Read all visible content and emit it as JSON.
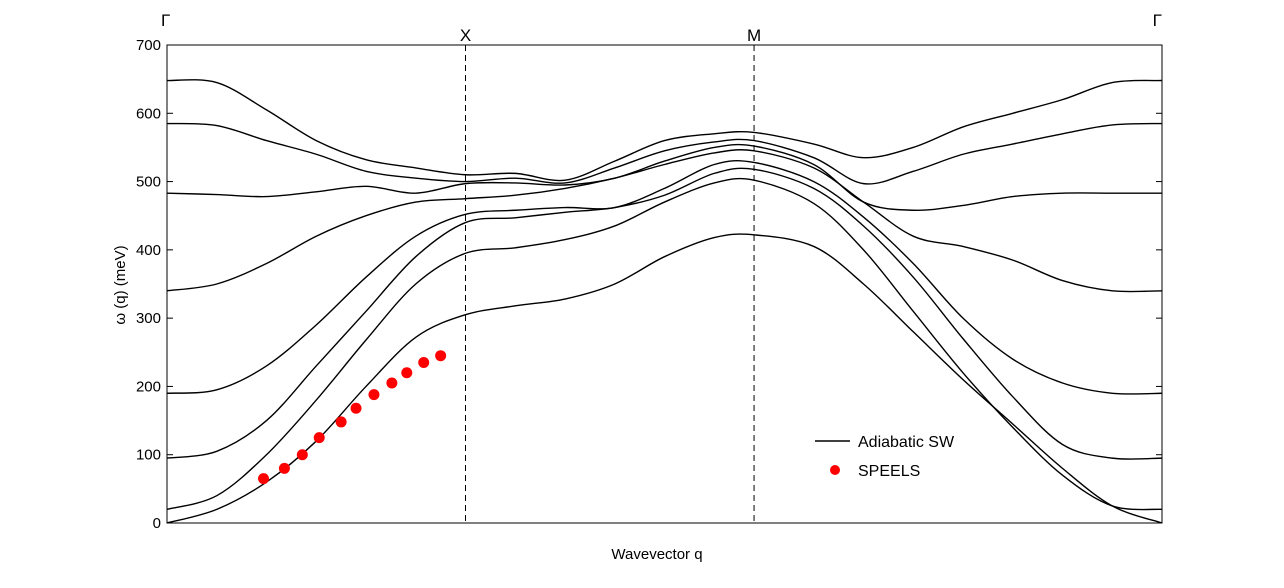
{
  "chart_data": {
    "type": "line",
    "title": "",
    "xlabel": "Wavevector q",
    "ylabel": "ω (q) (meV)",
    "ylim": [
      0,
      700
    ],
    "yticks": [
      0,
      100,
      200,
      300,
      400,
      500,
      600,
      700
    ],
    "xlim": [
      0,
      1
    ],
    "high_symmetry_points": [
      {
        "label": "Γ",
        "x": 0.0
      },
      {
        "label": "X",
        "x": 0.3
      },
      {
        "label": "M",
        "x": 0.59
      },
      {
        "label": "Γ",
        "x": 1.0
      }
    ],
    "grid": false,
    "legend": {
      "position": "lower-right",
      "entries": [
        "Adiabatic SW",
        "SPEELS"
      ]
    },
    "series": [
      {
        "name": "Adiabatic SW",
        "style": "line",
        "points": [
          [
            0,
            0
          ],
          [
            0.05,
            20
          ],
          [
            0.1,
            60
          ],
          [
            0.15,
            120
          ],
          [
            0.2,
            200
          ],
          [
            0.25,
            272
          ],
          [
            0.3,
            305
          ],
          [
            0.35,
            318
          ],
          [
            0.4,
            328
          ],
          [
            0.45,
            350
          ],
          [
            0.5,
            390
          ],
          [
            0.55,
            418
          ],
          [
            0.59,
            422
          ],
          [
            0.65,
            405
          ],
          [
            0.7,
            350
          ],
          [
            0.75,
            280
          ],
          [
            0.8,
            210
          ],
          [
            0.85,
            145
          ],
          [
            0.9,
            80
          ],
          [
            0.95,
            25
          ],
          [
            1.0,
            0
          ]
        ]
      },
      {
        "name": "Adiabatic SW",
        "style": "line",
        "points": [
          [
            0,
            20
          ],
          [
            0.05,
            40
          ],
          [
            0.1,
            100
          ],
          [
            0.15,
            180
          ],
          [
            0.2,
            268
          ],
          [
            0.25,
            350
          ],
          [
            0.3,
            395
          ],
          [
            0.35,
            403
          ],
          [
            0.4,
            415
          ],
          [
            0.45,
            435
          ],
          [
            0.5,
            470
          ],
          [
            0.55,
            498
          ],
          [
            0.59,
            502
          ],
          [
            0.65,
            468
          ],
          [
            0.7,
            400
          ],
          [
            0.75,
            310
          ],
          [
            0.8,
            220
          ],
          [
            0.85,
            140
          ],
          [
            0.9,
            70
          ],
          [
            0.95,
            25
          ],
          [
            1.0,
            20
          ]
        ]
      },
      {
        "name": "Adiabatic SW",
        "style": "line",
        "points": [
          [
            0,
            95
          ],
          [
            0.05,
            105
          ],
          [
            0.1,
            150
          ],
          [
            0.15,
            230
          ],
          [
            0.2,
            310
          ],
          [
            0.25,
            390
          ],
          [
            0.3,
            440
          ],
          [
            0.35,
            447
          ],
          [
            0.4,
            455
          ],
          [
            0.45,
            462
          ],
          [
            0.5,
            480
          ],
          [
            0.55,
            512
          ],
          [
            0.59,
            518
          ],
          [
            0.65,
            490
          ],
          [
            0.7,
            435
          ],
          [
            0.75,
            360
          ],
          [
            0.8,
            270
          ],
          [
            0.85,
            185
          ],
          [
            0.9,
            115
          ],
          [
            0.95,
            95
          ],
          [
            1.0,
            95
          ]
        ]
      },
      {
        "name": "Adiabatic SW",
        "style": "line",
        "points": [
          [
            0,
            190
          ],
          [
            0.05,
            195
          ],
          [
            0.1,
            230
          ],
          [
            0.15,
            290
          ],
          [
            0.2,
            360
          ],
          [
            0.25,
            420
          ],
          [
            0.3,
            452
          ],
          [
            0.35,
            458
          ],
          [
            0.4,
            462
          ],
          [
            0.45,
            462
          ],
          [
            0.5,
            490
          ],
          [
            0.55,
            525
          ],
          [
            0.59,
            528
          ],
          [
            0.65,
            500
          ],
          [
            0.7,
            448
          ],
          [
            0.75,
            380
          ],
          [
            0.8,
            300
          ],
          [
            0.85,
            240
          ],
          [
            0.9,
            205
          ],
          [
            0.95,
            190
          ],
          [
            1.0,
            190
          ]
        ]
      },
      {
        "name": "Adiabatic SW",
        "style": "line",
        "points": [
          [
            0,
            340
          ],
          [
            0.05,
            350
          ],
          [
            0.1,
            380
          ],
          [
            0.15,
            420
          ],
          [
            0.2,
            450
          ],
          [
            0.25,
            470
          ],
          [
            0.3,
            475
          ],
          [
            0.35,
            480
          ],
          [
            0.4,
            490
          ],
          [
            0.45,
            505
          ],
          [
            0.5,
            525
          ],
          [
            0.55,
            542
          ],
          [
            0.59,
            545
          ],
          [
            0.65,
            520
          ],
          [
            0.7,
            470
          ],
          [
            0.75,
            420
          ],
          [
            0.8,
            405
          ],
          [
            0.85,
            385
          ],
          [
            0.9,
            355
          ],
          [
            0.95,
            340
          ],
          [
            1.0,
            340
          ]
        ]
      },
      {
        "name": "Adiabatic SW",
        "style": "line",
        "points": [
          [
            0,
            483
          ],
          [
            0.05,
            481
          ],
          [
            0.1,
            478
          ],
          [
            0.15,
            485
          ],
          [
            0.2,
            493
          ],
          [
            0.25,
            483
          ],
          [
            0.3,
            497
          ],
          [
            0.35,
            498
          ],
          [
            0.4,
            495
          ],
          [
            0.45,
            505
          ],
          [
            0.5,
            530
          ],
          [
            0.55,
            550
          ],
          [
            0.59,
            552
          ],
          [
            0.65,
            525
          ],
          [
            0.7,
            470
          ],
          [
            0.75,
            458
          ],
          [
            0.8,
            465
          ],
          [
            0.85,
            478
          ],
          [
            0.9,
            483
          ],
          [
            0.95,
            483
          ],
          [
            1.0,
            483
          ]
        ]
      },
      {
        "name": "Adiabatic SW",
        "style": "line",
        "points": [
          [
            0,
            585
          ],
          [
            0.05,
            582
          ],
          [
            0.1,
            560
          ],
          [
            0.15,
            540
          ],
          [
            0.2,
            515
          ],
          [
            0.25,
            505
          ],
          [
            0.3,
            500
          ],
          [
            0.35,
            505
          ],
          [
            0.4,
            498
          ],
          [
            0.45,
            520
          ],
          [
            0.5,
            545
          ],
          [
            0.55,
            558
          ],
          [
            0.59,
            560
          ],
          [
            0.65,
            535
          ],
          [
            0.7,
            497
          ],
          [
            0.75,
            515
          ],
          [
            0.8,
            540
          ],
          [
            0.85,
            555
          ],
          [
            0.9,
            570
          ],
          [
            0.95,
            583
          ],
          [
            1.0,
            585
          ]
        ]
      },
      {
        "name": "Adiabatic SW",
        "style": "line",
        "points": [
          [
            0,
            648
          ],
          [
            0.05,
            645
          ],
          [
            0.1,
            605
          ],
          [
            0.15,
            560
          ],
          [
            0.2,
            532
          ],
          [
            0.25,
            520
          ],
          [
            0.3,
            510
          ],
          [
            0.35,
            512
          ],
          [
            0.4,
            502
          ],
          [
            0.45,
            530
          ],
          [
            0.5,
            560
          ],
          [
            0.55,
            570
          ],
          [
            0.59,
            572
          ],
          [
            0.65,
            555
          ],
          [
            0.7,
            535
          ],
          [
            0.75,
            550
          ],
          [
            0.8,
            580
          ],
          [
            0.85,
            600
          ],
          [
            0.9,
            620
          ],
          [
            0.95,
            645
          ],
          [
            1.0,
            648
          ]
        ]
      },
      {
        "name": "SPEELS",
        "style": "scatter",
        "color": "#ff0000",
        "points": [
          [
            0.097,
            65
          ],
          [
            0.118,
            80
          ],
          [
            0.136,
            100
          ],
          [
            0.153,
            125
          ],
          [
            0.175,
            148
          ],
          [
            0.19,
            168
          ],
          [
            0.208,
            188
          ],
          [
            0.226,
            205
          ],
          [
            0.241,
            220
          ],
          [
            0.258,
            235
          ],
          [
            0.275,
            245
          ]
        ]
      }
    ]
  }
}
